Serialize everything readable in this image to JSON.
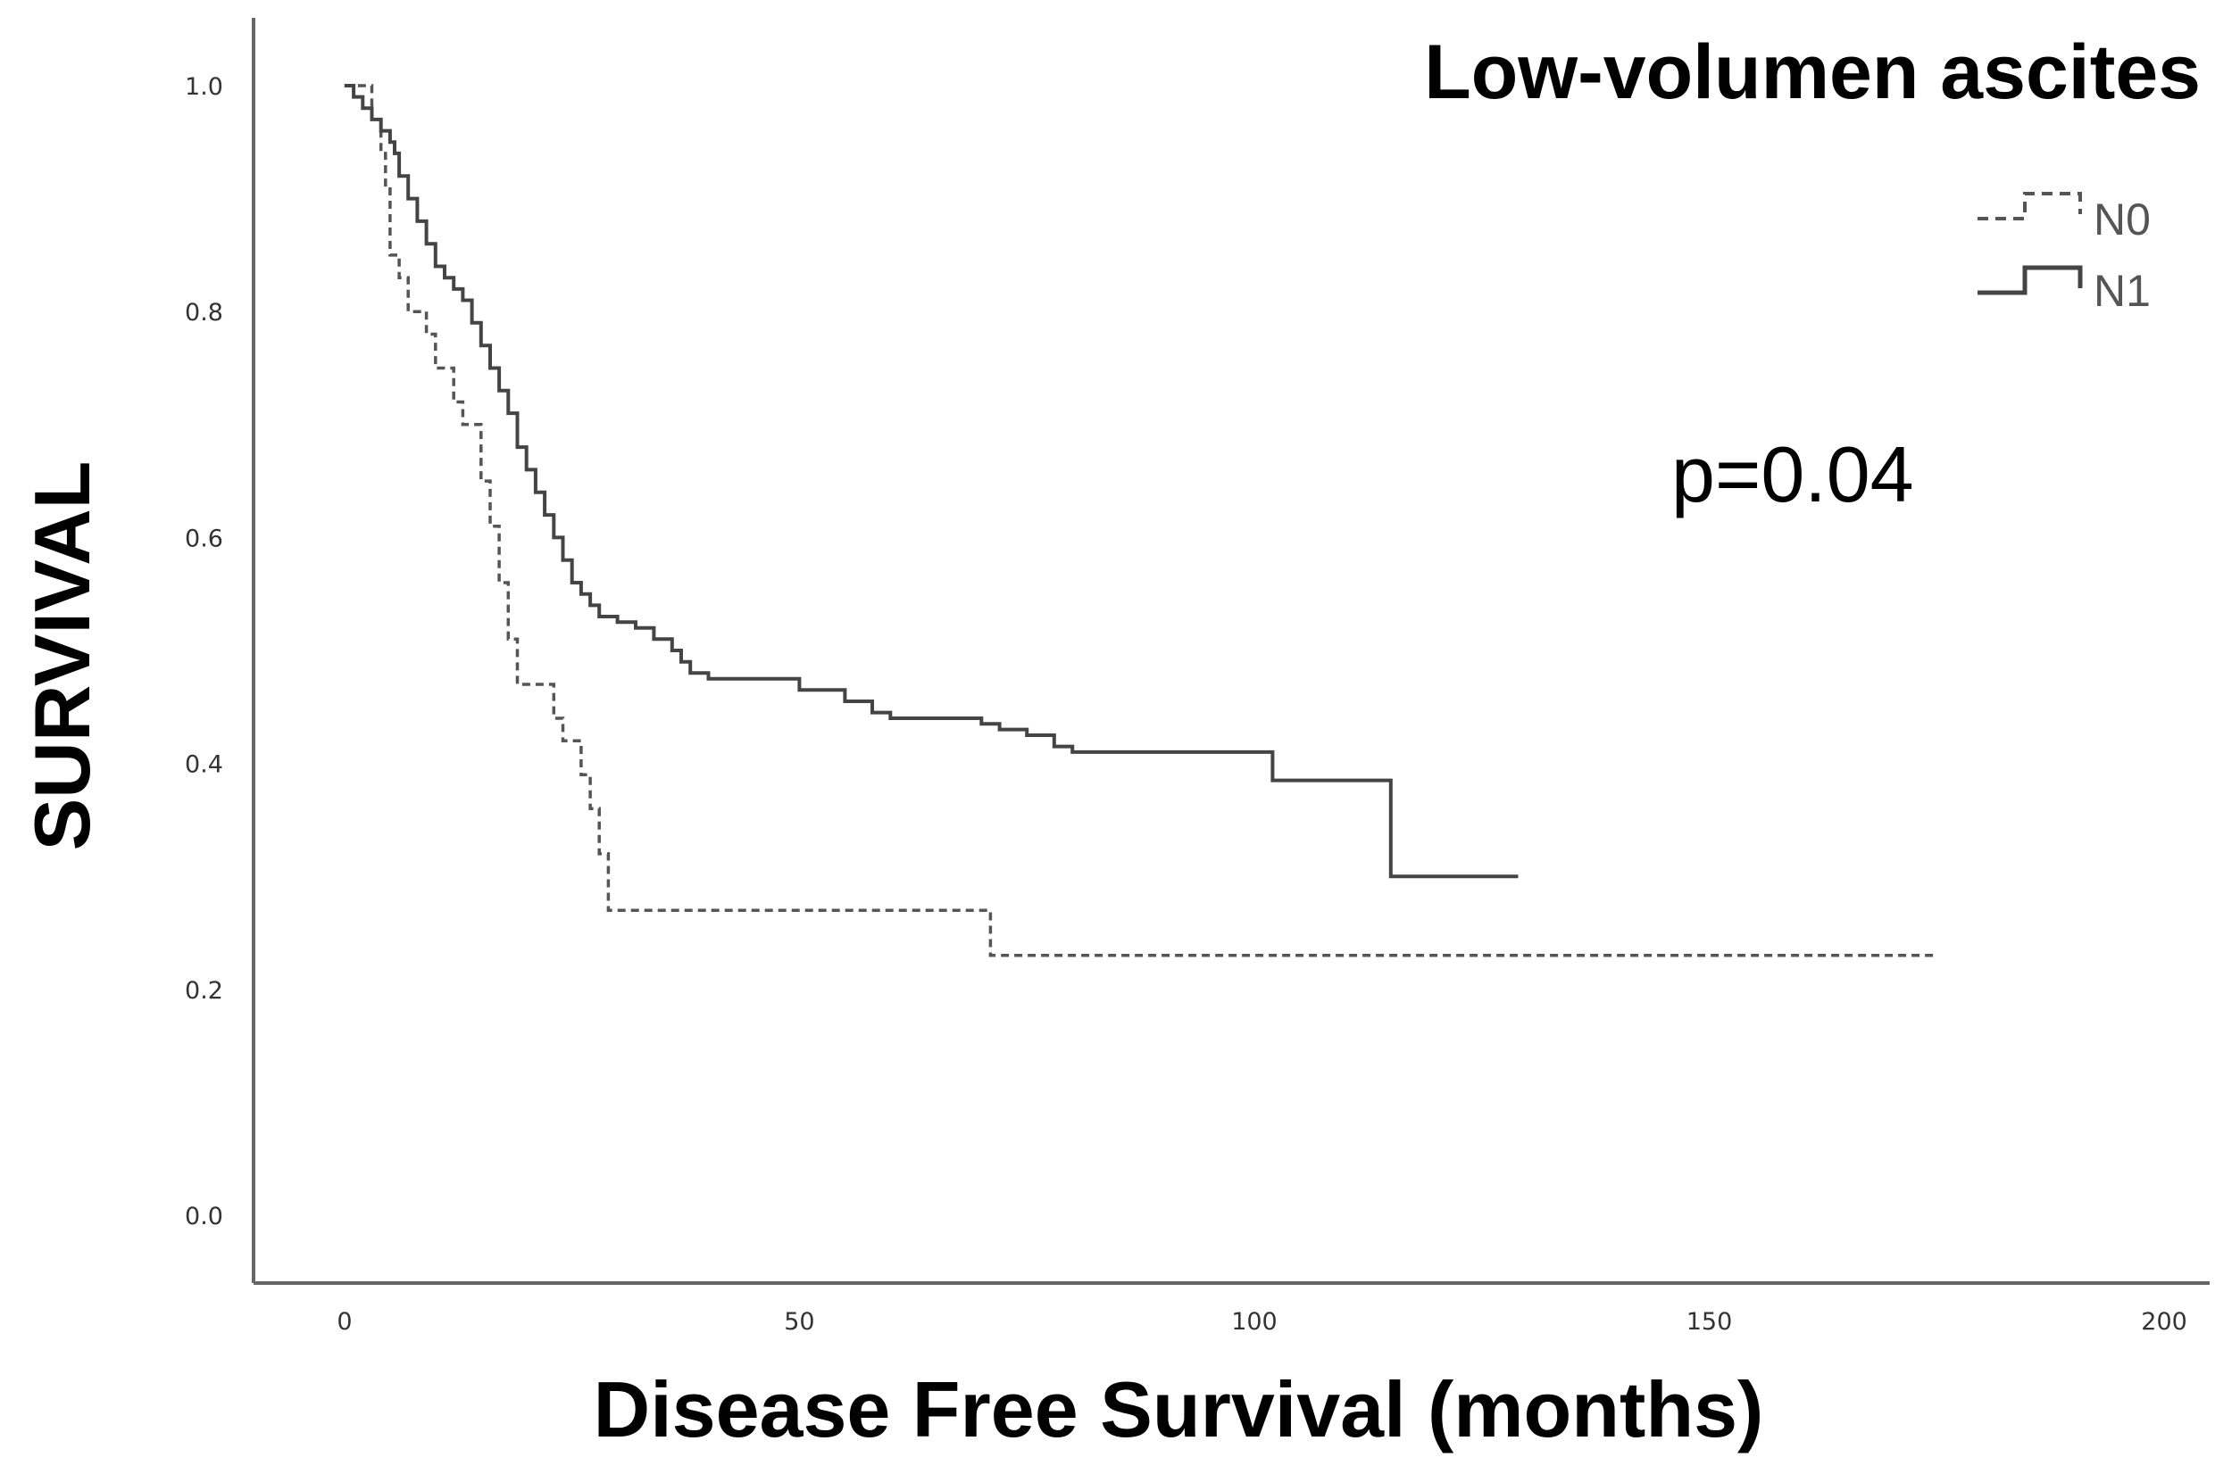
{
  "chart_data": {
    "type": "line",
    "subtype": "kaplan-meier step",
    "title": "Low-volumen ascites",
    "xlabel": "Disease Free Survival (months)",
    "ylabel": "SURVIVAL",
    "xlim": [
      -10,
      205
    ],
    "ylim": [
      -0.06,
      1.06
    ],
    "x_ticks": [
      0,
      50,
      100,
      150,
      200
    ],
    "x_tick_labels": [
      "0",
      "50",
      "100",
      "150",
      "200"
    ],
    "y_ticks": [
      0.0,
      0.2,
      0.4,
      0.6,
      0.8,
      1.0
    ],
    "y_tick_labels": [
      "0.0",
      "0.2",
      "0.4",
      "0.6",
      "0.8",
      "1.0"
    ],
    "annotation": "p=0.04",
    "legend_position": "top-right",
    "series": [
      {
        "name": "N0",
        "style": "dashed",
        "x": [
          0,
          3,
          4,
          4.5,
          5,
          6,
          7,
          9,
          10,
          12,
          13,
          15,
          16,
          17,
          18,
          19,
          20,
          23,
          24,
          26,
          27,
          28,
          29,
          70,
          71,
          175
        ],
        "y": [
          1.0,
          0.97,
          0.94,
          0.91,
          0.85,
          0.83,
          0.8,
          0.78,
          0.75,
          0.72,
          0.7,
          0.65,
          0.61,
          0.56,
          0.51,
          0.47,
          0.47,
          0.44,
          0.42,
          0.39,
          0.36,
          0.32,
          0.27,
          0.27,
          0.23,
          0.23
        ]
      },
      {
        "name": "N1",
        "style": "solid",
        "x": [
          0,
          1,
          2,
          3,
          4,
          5,
          5.5,
          6,
          7,
          8,
          9,
          10,
          11,
          12,
          13,
          14,
          15,
          16,
          17,
          18,
          19,
          20,
          21,
          22,
          23,
          24,
          25,
          26,
          27,
          28,
          30,
          32,
          34,
          36,
          37,
          38,
          40,
          45,
          50,
          55,
          58,
          60,
          70,
          72,
          75,
          78,
          80,
          100,
          102,
          114,
          115,
          129
        ],
        "y": [
          1.0,
          0.99,
          0.98,
          0.97,
          0.96,
          0.95,
          0.94,
          0.92,
          0.9,
          0.88,
          0.86,
          0.84,
          0.83,
          0.82,
          0.81,
          0.79,
          0.77,
          0.75,
          0.73,
          0.71,
          0.68,
          0.66,
          0.64,
          0.62,
          0.6,
          0.58,
          0.56,
          0.55,
          0.54,
          0.53,
          0.525,
          0.52,
          0.51,
          0.5,
          0.49,
          0.48,
          0.475,
          0.475,
          0.465,
          0.455,
          0.445,
          0.44,
          0.435,
          0.43,
          0.425,
          0.415,
          0.41,
          0.41,
          0.385,
          0.385,
          0.3,
          0.3
        ]
      }
    ]
  }
}
